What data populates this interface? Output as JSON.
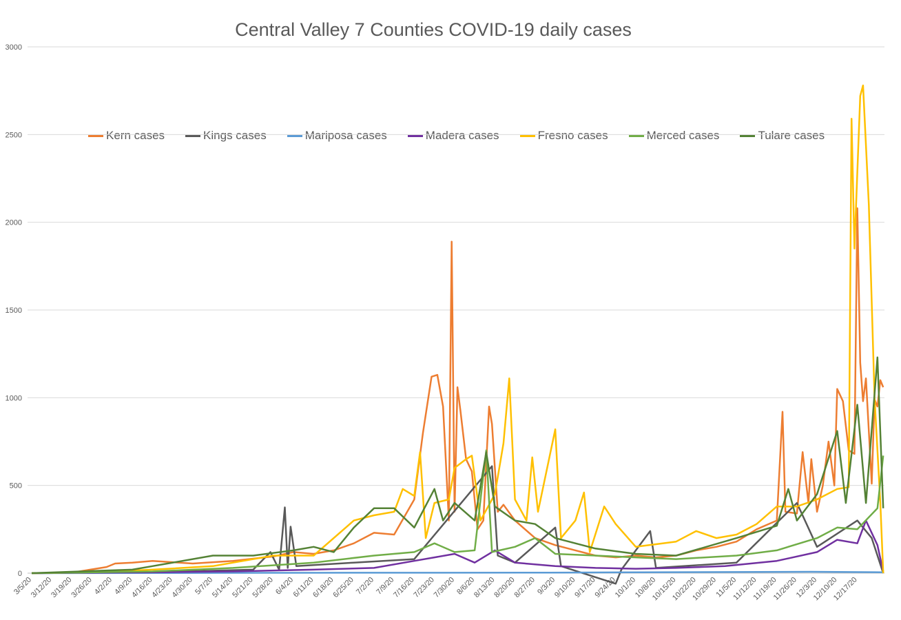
{
  "chart_data": {
    "type": "line",
    "title": "Central Valley 7 Counties COVID-19 daily cases",
    "xlabel": "",
    "ylabel": "",
    "ylim": [
      0,
      3000
    ],
    "yticks": [
      0,
      500,
      1000,
      1500,
      2000,
      2500,
      3000
    ],
    "grid": true,
    "legend_position": "top",
    "x_start": "3/5/20",
    "x_end": "12/25/20",
    "x_tick_labels": [
      "3/5/20",
      "3/12/20",
      "3/19/20",
      "3/26/20",
      "4/2/20",
      "4/9/20",
      "4/16/20",
      "4/23/20",
      "4/30/20",
      "5/7/20",
      "5/14/20",
      "5/21/20",
      "5/28/20",
      "6/4/20",
      "6/11/20",
      "6/18/20",
      "6/25/20",
      "7/2/20",
      "7/9/20",
      "7/16/20",
      "7/23/20",
      "7/30/20",
      "8/6/20",
      "8/13/20",
      "8/20/20",
      "8/27/20",
      "9/3/20",
      "9/10/20",
      "9/17/20",
      "9/24/20",
      "10/1/20",
      "10/8/20",
      "10/15/20",
      "10/22/20",
      "10/29/20",
      "11/5/20",
      "11/12/20",
      "11/19/20",
      "11/26/20",
      "12/3/20",
      "12/10/20",
      "12/17/20"
    ],
    "series": [
      {
        "name": "Kern cases",
        "color": "#ED7D31",
        "points": [
          [
            "3/5/20",
            0
          ],
          [
            "3/19/20",
            3
          ],
          [
            "3/31/20",
            35
          ],
          [
            "4/3/20",
            55
          ],
          [
            "4/9/20",
            60
          ],
          [
            "4/16/20",
            70
          ],
          [
            "4/30/20",
            55
          ],
          [
            "5/14/20",
            70
          ],
          [
            "5/28/20",
            95
          ],
          [
            "6/4/20",
            120
          ],
          [
            "6/11/20",
            110
          ],
          [
            "6/18/20",
            130
          ],
          [
            "6/25/20",
            170
          ],
          [
            "7/2/20",
            230
          ],
          [
            "7/9/20",
            220
          ],
          [
            "7/16/20",
            420
          ],
          [
            "7/19/20",
            800
          ],
          [
            "7/22/20",
            1120
          ],
          [
            "7/24/20",
            1130
          ],
          [
            "7/26/20",
            950
          ],
          [
            "7/28/20",
            300
          ],
          [
            "7/29/20",
            1890
          ],
          [
            "7/30/20",
            350
          ],
          [
            "7/31/20",
            1060
          ],
          [
            "8/1/20",
            930
          ],
          [
            "8/3/20",
            650
          ],
          [
            "8/5/20",
            580
          ],
          [
            "8/7/20",
            250
          ],
          [
            "8/9/20",
            300
          ],
          [
            "8/11/20",
            950
          ],
          [
            "8/12/20",
            850
          ],
          [
            "8/14/20",
            350
          ],
          [
            "8/16/20",
            390
          ],
          [
            "8/20/20",
            300
          ],
          [
            "8/27/20",
            200
          ],
          [
            "9/3/20",
            160
          ],
          [
            "9/10/20",
            130
          ],
          [
            "9/17/20",
            100
          ],
          [
            "9/24/20",
            90
          ],
          [
            "10/1/20",
            100
          ],
          [
            "10/8/20",
            90
          ],
          [
            "10/15/20",
            100
          ],
          [
            "10/22/20",
            130
          ],
          [
            "10/29/20",
            150
          ],
          [
            "11/5/20",
            180
          ],
          [
            "11/12/20",
            250
          ],
          [
            "11/19/20",
            300
          ],
          [
            "11/21/20",
            920
          ],
          [
            "11/22/20",
            350
          ],
          [
            "11/26/20",
            340
          ],
          [
            "11/28/20",
            690
          ],
          [
            "11/30/20",
            400
          ],
          [
            "12/1/20",
            650
          ],
          [
            "12/3/20",
            350
          ],
          [
            "12/5/20",
            500
          ],
          [
            "12/7/20",
            750
          ],
          [
            "12/9/20",
            500
          ],
          [
            "12/10/20",
            1050
          ],
          [
            "12/12/20",
            980
          ],
          [
            "12/14/20",
            700
          ],
          [
            "12/16/20",
            680
          ],
          [
            "12/17/20",
            2080
          ],
          [
            "12/18/20",
            1200
          ],
          [
            "12/19/20",
            980
          ],
          [
            "12/20/20",
            1110
          ],
          [
            "12/22/20",
            510
          ],
          [
            "12/23/20",
            990
          ],
          [
            "12/24/20",
            950
          ],
          [
            "12/25/20",
            1100
          ],
          [
            "12/26/20",
            1060
          ]
        ]
      },
      {
        "name": "Kings cases",
        "color": "#595959",
        "points": [
          [
            "3/5/20",
            0
          ],
          [
            "4/16/20",
            5
          ],
          [
            "5/21/20",
            20
          ],
          [
            "5/27/20",
            120
          ],
          [
            "5/30/20",
            20
          ],
          [
            "6/1/20",
            375
          ],
          [
            "6/2/20",
            30
          ],
          [
            "6/3/20",
            265
          ],
          [
            "6/5/20",
            40
          ],
          [
            "6/25/20",
            60
          ],
          [
            "7/16/20",
            80
          ],
          [
            "8/12/20",
            610
          ],
          [
            "8/14/20",
            100
          ],
          [
            "8/20/20",
            60
          ],
          [
            "9/3/20",
            260
          ],
          [
            "9/5/20",
            40
          ],
          [
            "9/24/20",
            -60
          ],
          [
            "9/26/20",
            20
          ],
          [
            "10/6/20",
            240
          ],
          [
            "10/8/20",
            30
          ],
          [
            "11/5/20",
            60
          ],
          [
            "11/26/20",
            400
          ],
          [
            "12/3/20",
            150
          ],
          [
            "12/17/20",
            300
          ],
          [
            "12/22/20",
            200
          ],
          [
            "12/26/20",
            0
          ]
        ]
      },
      {
        "name": "Mariposa cases",
        "color": "#5B9BD5",
        "points": [
          [
            "3/5/20",
            0
          ],
          [
            "6/1/20",
            2
          ],
          [
            "9/1/20",
            3
          ],
          [
            "12/1/20",
            8
          ],
          [
            "12/26/20",
            5
          ]
        ]
      },
      {
        "name": "Madera cases",
        "color": "#7030A0",
        "points": [
          [
            "3/5/20",
            0
          ],
          [
            "4/16/20",
            5
          ],
          [
            "5/14/20",
            10
          ],
          [
            "6/11/20",
            20
          ],
          [
            "7/2/20",
            30
          ],
          [
            "7/16/20",
            70
          ],
          [
            "7/23/20",
            90
          ],
          [
            "7/30/20",
            110
          ],
          [
            "8/6/20",
            60
          ],
          [
            "8/13/20",
            130
          ],
          [
            "8/20/20",
            60
          ],
          [
            "9/3/20",
            40
          ],
          [
            "9/17/20",
            30
          ],
          [
            "10/1/20",
            25
          ],
          [
            "10/15/20",
            30
          ],
          [
            "11/1/20",
            40
          ],
          [
            "11/19/20",
            70
          ],
          [
            "12/3/20",
            120
          ],
          [
            "12/10/20",
            190
          ],
          [
            "12/17/20",
            170
          ],
          [
            "12/20/20",
            300
          ],
          [
            "12/24/20",
            160
          ],
          [
            "12/26/20",
            10
          ]
        ]
      },
      {
        "name": "Fresno cases",
        "color": "#FFC000",
        "points": [
          [
            "3/5/20",
            0
          ],
          [
            "3/26/20",
            5
          ],
          [
            "4/16/20",
            20
          ],
          [
            "5/7/20",
            40
          ],
          [
            "5/28/20",
            100
          ],
          [
            "6/11/20",
            100
          ],
          [
            "6/25/20",
            300
          ],
          [
            "7/2/20",
            330
          ],
          [
            "7/9/20",
            350
          ],
          [
            "7/12/20",
            480
          ],
          [
            "7/16/20",
            440
          ],
          [
            "7/18/20",
            690
          ],
          [
            "7/20/20",
            200
          ],
          [
            "7/23/20",
            400
          ],
          [
            "7/28/20",
            420
          ],
          [
            "7/30/20",
            600
          ],
          [
            "8/3/20",
            650
          ],
          [
            "8/5/20",
            670
          ],
          [
            "8/8/20",
            300
          ],
          [
            "8/13/20",
            450
          ],
          [
            "8/16/20",
            740
          ],
          [
            "8/18/20",
            1110
          ],
          [
            "8/20/20",
            420
          ],
          [
            "8/24/20",
            300
          ],
          [
            "8/26/20",
            660
          ],
          [
            "8/28/20",
            350
          ],
          [
            "9/3/20",
            820
          ],
          [
            "9/5/20",
            200
          ],
          [
            "9/10/20",
            300
          ],
          [
            "9/13/20",
            460
          ],
          [
            "9/15/20",
            120
          ],
          [
            "9/20/20",
            380
          ],
          [
            "9/24/20",
            280
          ],
          [
            "10/1/20",
            150
          ],
          [
            "10/15/20",
            180
          ],
          [
            "10/22/20",
            240
          ],
          [
            "10/29/20",
            200
          ],
          [
            "11/5/20",
            220
          ],
          [
            "11/12/20",
            280
          ],
          [
            "11/19/20",
            380
          ],
          [
            "11/26/20",
            380
          ],
          [
            "12/3/20",
            420
          ],
          [
            "12/10/20",
            480
          ],
          [
            "12/14/20",
            490
          ],
          [
            "12/15/20",
            2590
          ],
          [
            "12/16/20",
            1850
          ],
          [
            "12/18/20",
            2720
          ],
          [
            "12/19/20",
            2780
          ],
          [
            "12/21/20",
            2100
          ],
          [
            "12/23/20",
            1000
          ],
          [
            "12/25/20",
            400
          ],
          [
            "12/26/20",
            0
          ]
        ]
      },
      {
        "name": "Merced cases",
        "color": "#70AD47",
        "points": [
          [
            "3/5/20",
            0
          ],
          [
            "4/16/20",
            10
          ],
          [
            "5/14/20",
            30
          ],
          [
            "6/11/20",
            60
          ],
          [
            "7/2/20",
            100
          ],
          [
            "7/16/20",
            120
          ],
          [
            "7/23/20",
            170
          ],
          [
            "7/30/20",
            120
          ],
          [
            "8/6/20",
            130
          ],
          [
            "8/10/20",
            700
          ],
          [
            "8/12/20",
            120
          ],
          [
            "8/20/20",
            150
          ],
          [
            "8/27/20",
            200
          ],
          [
            "9/3/20",
            110
          ],
          [
            "9/17/20",
            100
          ],
          [
            "10/1/20",
            90
          ],
          [
            "10/15/20",
            80
          ],
          [
            "11/5/20",
            100
          ],
          [
            "11/19/20",
            130
          ],
          [
            "12/3/20",
            200
          ],
          [
            "12/10/20",
            260
          ],
          [
            "12/17/20",
            250
          ],
          [
            "12/24/20",
            370
          ],
          [
            "12/26/20",
            670
          ]
        ]
      },
      {
        "name": "Tulare cases",
        "color": "#548235",
        "points": [
          [
            "3/5/20",
            0
          ],
          [
            "4/9/20",
            20
          ],
          [
            "4/16/20",
            40
          ],
          [
            "5/7/20",
            100
          ],
          [
            "5/21/20",
            100
          ],
          [
            "6/4/20",
            130
          ],
          [
            "6/11/20",
            150
          ],
          [
            "6/18/20",
            120
          ],
          [
            "6/25/20",
            260
          ],
          [
            "7/2/20",
            370
          ],
          [
            "7/9/20",
            370
          ],
          [
            "7/16/20",
            260
          ],
          [
            "7/23/20",
            480
          ],
          [
            "7/26/20",
            300
          ],
          [
            "7/30/20",
            400
          ],
          [
            "8/6/20",
            300
          ],
          [
            "8/10/20",
            690
          ],
          [
            "8/13/20",
            380
          ],
          [
            "8/20/20",
            300
          ],
          [
            "8/27/20",
            280
          ],
          [
            "9/3/20",
            200
          ],
          [
            "9/17/20",
            140
          ],
          [
            "10/1/20",
            110
          ],
          [
            "10/15/20",
            100
          ],
          [
            "11/5/20",
            200
          ],
          [
            "11/19/20",
            270
          ],
          [
            "11/23/20",
            480
          ],
          [
            "11/26/20",
            300
          ],
          [
            "12/3/20",
            450
          ],
          [
            "12/10/20",
            810
          ],
          [
            "12/13/20",
            400
          ],
          [
            "12/17/20",
            960
          ],
          [
            "12/20/20",
            400
          ],
          [
            "12/24/20",
            1230
          ],
          [
            "12/26/20",
            370
          ]
        ]
      }
    ]
  }
}
